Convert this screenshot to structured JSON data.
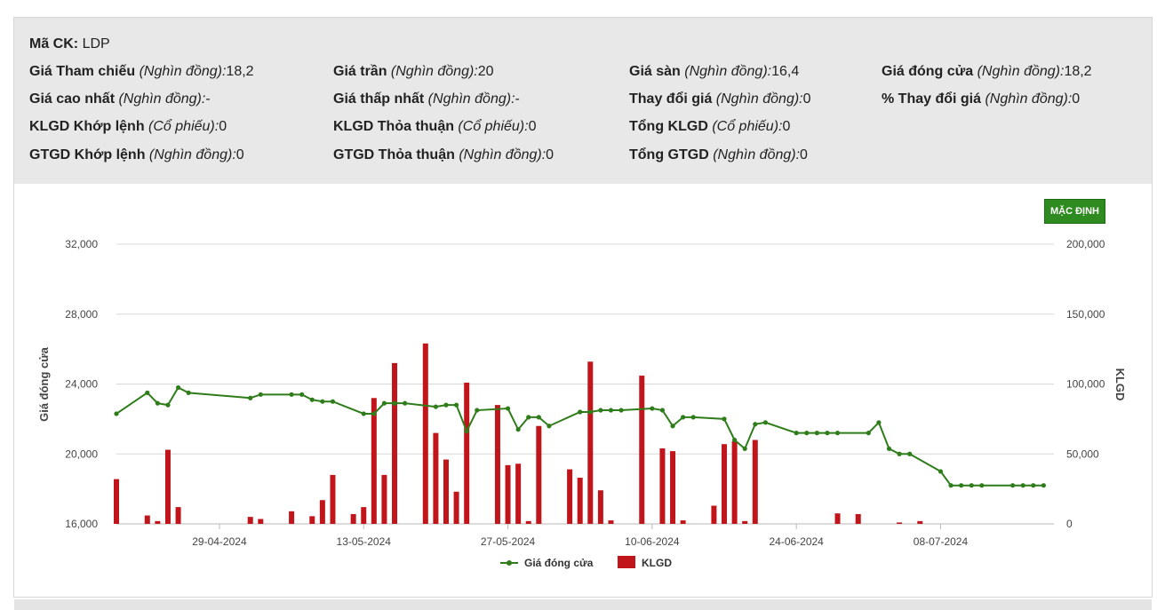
{
  "info": {
    "ticker_label": "Mã CK:",
    "ticker_value": "LDP",
    "rows": [
      [
        {
          "label": "Giá Tham chiếu",
          "unit": "(Nghìn đồng):",
          "value": "18,2"
        },
        {
          "label": "Giá trần",
          "unit": "(Nghìn đồng):",
          "value": "20"
        },
        {
          "label": "Giá sàn",
          "unit": "(Nghìn đồng):",
          "value": "16,4"
        },
        {
          "label": "Giá đóng cửa",
          "unit": "(Nghìn đồng):",
          "value": "18,2"
        }
      ],
      [
        {
          "label": "Giá cao nhất",
          "unit": "(Nghìn đồng):",
          "value": "-"
        },
        {
          "label": "Giá thấp nhất",
          "unit": "(Nghìn đồng):",
          "value": "-"
        },
        {
          "label": "Thay đổi giá",
          "unit": "(Nghìn đồng):",
          "value": "0"
        },
        {
          "label": "% Thay đổi giá",
          "unit": "(Nghìn đồng):",
          "value": "0"
        }
      ],
      [
        {
          "label": "KLGD Khớp lệnh",
          "unit": "(Cổ phiếu):",
          "value": "0"
        },
        {
          "label": "KLGD Thỏa thuận",
          "unit": "(Cổ phiếu):",
          "value": "0"
        },
        {
          "label": "Tổng KLGD",
          "unit": "(Cổ phiếu):",
          "value": "0"
        }
      ],
      [
        {
          "label": "GTGD Khớp lệnh",
          "unit": "(Nghìn đồng):",
          "value": "0"
        },
        {
          "label": "GTGD Thỏa thuận",
          "unit": "(Nghìn đồng):",
          "value": "0"
        },
        {
          "label": "Tổng GTGD",
          "unit": "(Nghìn đồng):",
          "value": "0"
        }
      ]
    ]
  },
  "button_label": "MẶC ĐỊNH",
  "chart_data": {
    "type": "bar+line",
    "left_axis": {
      "title": "Giá đóng cửa",
      "range": [
        16000,
        32000
      ],
      "ticks": [
        "16,000",
        "20,000",
        "24,000",
        "28,000",
        "32,000"
      ],
      "tick_values": [
        16000,
        20000,
        24000,
        28000,
        32000
      ]
    },
    "right_axis": {
      "title": "KLGD",
      "range": [
        0,
        200000
      ],
      "ticks": [
        "0",
        "50,000",
        "100,000",
        "150,000",
        "200,000"
      ],
      "tick_values": [
        0,
        50000,
        100000,
        150000,
        200000
      ]
    },
    "x_ticks": [
      "29-04-2024",
      "13-05-2024",
      "27-05-2024",
      "10-06-2024",
      "24-06-2024",
      "08-07-2024"
    ],
    "x_tick_days": [
      29,
      43,
      57,
      71,
      85,
      99
    ],
    "legend": [
      {
        "name": "Giá đóng cửa",
        "color": "#2e7d1a",
        "kind": "line"
      },
      {
        "name": "KLGD",
        "color": "#c0161b",
        "kind": "bar"
      }
    ],
    "colors": {
      "line": "#2e7d1a",
      "bar": "#c0161b",
      "grid": "#d8d8d8"
    },
    "price_series": [
      [
        "19-04-2024",
        22300
      ],
      [
        "22-04-2024",
        23500
      ],
      [
        "23-04-2024",
        22900
      ],
      [
        "24-04-2024",
        22800
      ],
      [
        "25-04-2024",
        23800
      ],
      [
        "26-04-2024",
        23500
      ],
      [
        "02-05-2024",
        23200
      ],
      [
        "03-05-2024",
        23400
      ],
      [
        "06-05-2024",
        23400
      ],
      [
        "07-05-2024",
        23400
      ],
      [
        "08-05-2024",
        23100
      ],
      [
        "09-05-2024",
        23000
      ],
      [
        "10-05-2024",
        23000
      ],
      [
        "13-05-2024",
        22300
      ],
      [
        "14-05-2024",
        22300
      ],
      [
        "15-05-2024",
        22900
      ],
      [
        "16-05-2024",
        22900
      ],
      [
        "17-05-2024",
        22900
      ],
      [
        "20-05-2024",
        22700
      ],
      [
        "21-05-2024",
        22800
      ],
      [
        "22-05-2024",
        22800
      ],
      [
        "23-05-2024",
        21300
      ],
      [
        "24-05-2024",
        22500
      ],
      [
        "27-05-2024",
        22600
      ],
      [
        "28-05-2024",
        21400
      ],
      [
        "29-05-2024",
        22100
      ],
      [
        "30-05-2024",
        22100
      ],
      [
        "31-05-2024",
        21600
      ],
      [
        "03-06-2024",
        22400
      ],
      [
        "04-06-2024",
        22400
      ],
      [
        "05-06-2024",
        22500
      ],
      [
        "06-06-2024",
        22500
      ],
      [
        "07-06-2024",
        22500
      ],
      [
        "10-06-2024",
        22600
      ],
      [
        "11-06-2024",
        22500
      ],
      [
        "12-06-2024",
        21600
      ],
      [
        "13-06-2024",
        22100
      ],
      [
        "14-06-2024",
        22100
      ],
      [
        "17-06-2024",
        22000
      ],
      [
        "18-06-2024",
        20800
      ],
      [
        "19-06-2024",
        20300
      ],
      [
        "20-06-2024",
        21700
      ],
      [
        "21-06-2024",
        21800
      ],
      [
        "24-06-2024",
        21200
      ],
      [
        "25-06-2024",
        21200
      ],
      [
        "26-06-2024",
        21200
      ],
      [
        "27-06-2024",
        21200
      ],
      [
        "28-06-2024",
        21200
      ],
      [
        "01-07-2024",
        21200
      ],
      [
        "02-07-2024",
        21800
      ],
      [
        "03-07-2024",
        20300
      ],
      [
        "04-07-2024",
        20000
      ],
      [
        "05-07-2024",
        20000
      ],
      [
        "08-07-2024",
        19000
      ],
      [
        "09-07-2024",
        18200
      ],
      [
        "10-07-2024",
        18200
      ],
      [
        "11-07-2024",
        18200
      ],
      [
        "12-07-2024",
        18200
      ],
      [
        "15-07-2024",
        18200
      ],
      [
        "16-07-2024",
        18200
      ],
      [
        "17-07-2024",
        18200
      ],
      [
        "18-07-2024",
        18200
      ]
    ],
    "volume_series": [
      [
        "19-04-2024",
        32000
      ],
      [
        "22-04-2024",
        6000
      ],
      [
        "23-04-2024",
        2000
      ],
      [
        "24-04-2024",
        53000
      ],
      [
        "25-04-2024",
        12000
      ],
      [
        "02-05-2024",
        5000
      ],
      [
        "03-05-2024",
        3500
      ],
      [
        "06-05-2024",
        9000
      ],
      [
        "08-05-2024",
        5500
      ],
      [
        "09-05-2024",
        17000
      ],
      [
        "10-05-2024",
        35000
      ],
      [
        "12-05-2024",
        7000
      ],
      [
        "13-05-2024",
        12000
      ],
      [
        "14-05-2024",
        90000
      ],
      [
        "15-05-2024",
        35000
      ],
      [
        "16-05-2024",
        115000
      ],
      [
        "19-05-2024",
        129000
      ],
      [
        "20-05-2024",
        65000
      ],
      [
        "21-05-2024",
        46000
      ],
      [
        "22-05-2024",
        23000
      ],
      [
        "23-05-2024",
        101000
      ],
      [
        "26-05-2024",
        85000
      ],
      [
        "27-05-2024",
        42000
      ],
      [
        "28-05-2024",
        43000
      ],
      [
        "29-05-2024",
        2000
      ],
      [
        "30-05-2024",
        70000
      ],
      [
        "02-06-2024",
        39000
      ],
      [
        "03-06-2024",
        33000
      ],
      [
        "04-06-2024",
        116000
      ],
      [
        "05-06-2024",
        24000
      ],
      [
        "06-06-2024",
        2500
      ],
      [
        "09-06-2024",
        106000
      ],
      [
        "11-06-2024",
        54000
      ],
      [
        "12-06-2024",
        52000
      ],
      [
        "13-06-2024",
        2500
      ],
      [
        "16-06-2024",
        13000
      ],
      [
        "17-06-2024",
        57000
      ],
      [
        "18-06-2024",
        59000
      ],
      [
        "19-06-2024",
        2000
      ],
      [
        "20-06-2024",
        60000
      ],
      [
        "28-06-2024",
        7500
      ],
      [
        "30-06-2024",
        7000
      ],
      [
        "04-07-2024",
        1000
      ],
      [
        "06-07-2024",
        2000
      ]
    ]
  }
}
